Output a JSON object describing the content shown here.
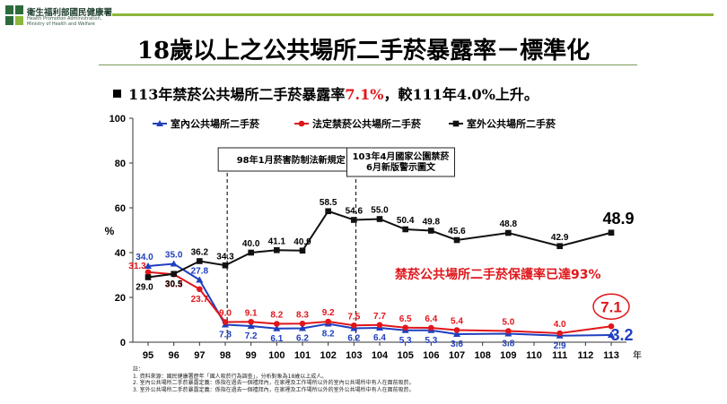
{
  "header": {
    "logo_cn": "衛生福利部國民健康署",
    "logo_en": [
      "Health Promotion Administration,",
      "Ministry of Health and Welfare"
    ]
  },
  "title": "18歲以上之公共場所二手菸暴露率－標準化",
  "headline": {
    "pre": "113年禁菸公共場所二手菸暴露率",
    "highlight": "7.1%",
    "post": "，較111年4.0%上升。"
  },
  "chart_data": {
    "type": "line",
    "ylabel": "%",
    "xlabel": "年",
    "ylim": [
      0,
      100
    ],
    "yticks": [
      0,
      20,
      40,
      60,
      80,
      100
    ],
    "x": [
      95,
      96,
      97,
      98,
      99,
      100,
      101,
      102,
      103,
      104,
      105,
      106,
      107,
      108,
      109,
      110,
      111,
      112,
      113
    ],
    "legend_position": "top-left",
    "series": [
      {
        "name": "室內公共場所二手菸",
        "color": "#1f3fbf",
        "marker": "triangle",
        "x": [
          95,
          96,
          97,
          98,
          99,
          100,
          101,
          102,
          103,
          104,
          105,
          106,
          107,
          109,
          111,
          113
        ],
        "values": [
          34.0,
          35.0,
          27.8,
          7.8,
          7.2,
          6.1,
          6.2,
          8.2,
          6.2,
          6.4,
          5.3,
          5.3,
          3.6,
          3.8,
          2.9,
          3.2
        ],
        "labels": [
          "34.0",
          "35.0",
          "27.8",
          "7.8",
          "7.2",
          "6.1",
          "6.2",
          "8.2",
          "6.2",
          "6.4",
          "5.3",
          "5.3",
          "3.6",
          "3.8",
          "2.9",
          "3.2"
        ]
      },
      {
        "name": "法定禁菸公共場所二手菸",
        "color": "#e0161b",
        "marker": "circle",
        "x": [
          95,
          96,
          97,
          98,
          99,
          100,
          101,
          102,
          103,
          104,
          105,
          106,
          107,
          109,
          111,
          113
        ],
        "values": [
          31.3,
          30.3,
          23.7,
          9.0,
          9.1,
          8.2,
          8.3,
          9.2,
          7.5,
          7.7,
          6.5,
          6.4,
          5.4,
          5.0,
          4.0,
          7.1
        ],
        "labels": [
          "31.3",
          "30.3",
          "23.7",
          "9.0",
          "9.1",
          "8.2",
          "8.3",
          "9.2",
          "7.5",
          "7.7",
          "6.5",
          "6.4",
          "5.4",
          "5.0",
          "4.0",
          "7.1"
        ]
      },
      {
        "name": "室外公共場所二手菸",
        "color": "#111111",
        "marker": "square",
        "x": [
          95,
          96,
          97,
          98,
          99,
          100,
          101,
          102,
          103,
          104,
          105,
          106,
          107,
          109,
          111,
          113
        ],
        "values": [
          29.0,
          30.5,
          36.2,
          34.3,
          40.0,
          41.1,
          40.9,
          58.5,
          54.6,
          55.0,
          50.4,
          49.8,
          45.6,
          48.8,
          42.9,
          48.9
        ],
        "labels": [
          "29.0",
          "30.5",
          "36.2",
          "34.3",
          "40.0",
          "41.1",
          "40.9",
          "58.5",
          "54.6",
          "55.0",
          "50.4",
          "49.8",
          "45.6",
          "48.8",
          "42.9",
          "48.9"
        ]
      }
    ],
    "policy_lines": [
      {
        "x": 98,
        "label": "98年1月菸害防制法新規定"
      },
      {
        "x": 103,
        "label": [
          "103年4月國家公園禁菸",
          "6月新版警示圖文"
        ]
      }
    ],
    "annotation": "禁菸公共場所二手菸保護率已達93%"
  },
  "notes": [
    "註：",
    "1. 資料來源：國民健康署歷年「國人吸菸行為調查」，分析對象為18歲以上成人。",
    "2. 室內公共場所二手菸暴露定義：係指在過去一個禮拜內，在家裡及工作場所以外的室內公共場所中有人在面前吸菸。",
    "3. 室外公共場所二手菸暴露定義：係指在過去一個禮拜內，在家裡及工作場所以外的室外公共場所中有人在面前吸菸。"
  ]
}
